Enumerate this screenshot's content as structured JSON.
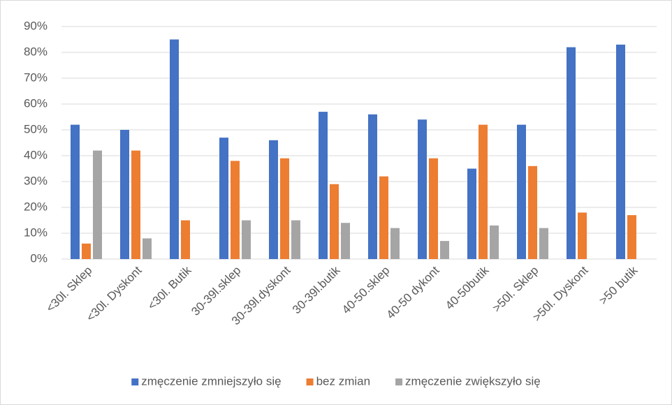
{
  "chart_data": {
    "type": "bar",
    "categories": [
      "<30l. Sklep",
      "<30l. Dyskont",
      "<30l. Butik",
      "30-39l.sklep",
      "30-39l.dyskont",
      "30-39l.butik",
      "40-50.sklep",
      "40-50 dykont",
      "40-50butik",
      ">50l. Sklep",
      ">50l. Dyskont",
      ">50 butik"
    ],
    "series": [
      {
        "name": "zmęczenie zmniejszyło się",
        "color": "#4472c4",
        "values": [
          52,
          50,
          85,
          47,
          46,
          57,
          56,
          54,
          35,
          52,
          82,
          83
        ]
      },
      {
        "name": "bez zmian",
        "color": "#ed7d31",
        "values": [
          6,
          42,
          15,
          38,
          39,
          29,
          32,
          39,
          52,
          36,
          18,
          17
        ]
      },
      {
        "name": "zmęczenie zwiększyło się",
        "color": "#a5a5a5",
        "values": [
          42,
          8,
          0,
          15,
          15,
          14,
          12,
          7,
          13,
          12,
          0,
          0
        ]
      }
    ],
    "ylim": [
      0,
      90
    ],
    "yticks": [
      {
        "value": 0,
        "label": "0%"
      },
      {
        "value": 10,
        "label": "10%"
      },
      {
        "value": 20,
        "label": "20%"
      },
      {
        "value": 30,
        "label": "30%"
      },
      {
        "value": 40,
        "label": "40%"
      },
      {
        "value": 50,
        "label": "50%"
      },
      {
        "value": 60,
        "label": "60%"
      },
      {
        "value": 70,
        "label": "70%"
      },
      {
        "value": 80,
        "label": "80%"
      },
      {
        "value": 90,
        "label": "90%"
      }
    ],
    "grid": true,
    "legend": "bottom"
  }
}
